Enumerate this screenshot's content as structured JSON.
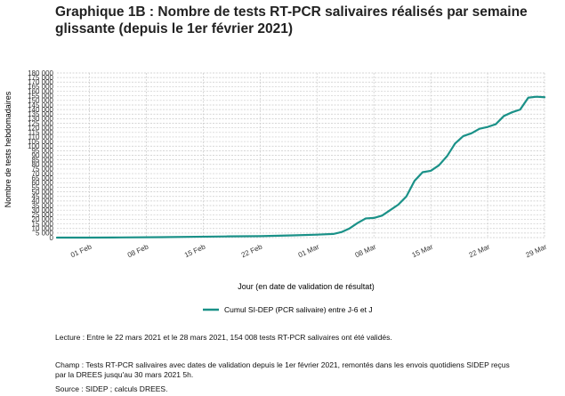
{
  "title": "Graphique 1B : Nombre de tests RT-PCR salivaires réalisés par semaine glissante (depuis le 1er février 2021)",
  "notes": {
    "lecture": "Lecture : Entre le 22 mars 2021 et le 28 mars 2021, 154 008 tests RT-PCR salivaires ont été validés.",
    "champ": "Champ : Tests RT-PCR salivaires avec dates de validation depuis le 1er février 2021, remontés dans les envois quotidiens SIDEP reçus par la DREES jusqu'au 30 mars 2021 5h.",
    "source": "Source : SIDEP ; calculs DREES."
  },
  "colors": {
    "series": "#1a9188",
    "grid": "#c9c9c9"
  },
  "chart_data": {
    "type": "line",
    "title": "Graphique 1B : Nombre de tests RT-PCR salivaires réalisés par semaine glissante (depuis le 1er février 2021)",
    "xlabel": "Jour (en date de validation de résultat)",
    "ylabel": "Nombre de tests hebdomadaires",
    "xlim": [
      "2021-01-28",
      "2021-03-29"
    ],
    "ylim": [
      0,
      180000
    ],
    "grid": true,
    "legend_position": "bottom",
    "x_ticks": [
      {
        "date": "2021-02-01",
        "label": "01 Feb"
      },
      {
        "date": "2021-02-08",
        "label": "08 Feb"
      },
      {
        "date": "2021-02-15",
        "label": "15 Feb"
      },
      {
        "date": "2021-02-22",
        "label": "22 Feb"
      },
      {
        "date": "2021-03-01",
        "label": "01 Mar"
      },
      {
        "date": "2021-03-08",
        "label": "08 Mar"
      },
      {
        "date": "2021-03-15",
        "label": "15 Mar"
      },
      {
        "date": "2021-03-22",
        "label": "22 Mar"
      },
      {
        "date": "2021-03-29",
        "label": "29 Mar"
      }
    ],
    "y_ticks": [
      {
        "value": 0,
        "label": "0"
      },
      {
        "value": 5000,
        "label": "5 000"
      },
      {
        "value": 10000,
        "label": "10 000"
      },
      {
        "value": 15000,
        "label": "15 000"
      },
      {
        "value": 20000,
        "label": "20 000"
      },
      {
        "value": 25000,
        "label": "25 000"
      },
      {
        "value": 30000,
        "label": "30 000"
      },
      {
        "value": 35000,
        "label": "35 000"
      },
      {
        "value": 40000,
        "label": "40 000"
      },
      {
        "value": 45000,
        "label": "45 000"
      },
      {
        "value": 50000,
        "label": "50 000"
      },
      {
        "value": 55000,
        "label": "55 000"
      },
      {
        "value": 60000,
        "label": "60 000"
      },
      {
        "value": 65000,
        "label": "65 000"
      },
      {
        "value": 70000,
        "label": "70 000"
      },
      {
        "value": 75000,
        "label": "75 000"
      },
      {
        "value": 80000,
        "label": "80 000"
      },
      {
        "value": 85000,
        "label": "85 000"
      },
      {
        "value": 90000,
        "label": "90 000"
      },
      {
        "value": 95000,
        "label": "95 000"
      },
      {
        "value": 100000,
        "label": "100 000"
      },
      {
        "value": 105000,
        "label": "105 000"
      },
      {
        "value": 110000,
        "label": "110 000"
      },
      {
        "value": 115000,
        "label": "115 000"
      },
      {
        "value": 120000,
        "label": "120 000"
      },
      {
        "value": 125000,
        "label": "125 000"
      },
      {
        "value": 130000,
        "label": "130 000"
      },
      {
        "value": 135000,
        "label": "135 000"
      },
      {
        "value": 140000,
        "label": "140 000"
      },
      {
        "value": 145000,
        "label": "145 000"
      },
      {
        "value": 150000,
        "label": "150 000"
      },
      {
        "value": 155000,
        "label": "155 000"
      },
      {
        "value": 160000,
        "label": "160 000"
      },
      {
        "value": 165000,
        "label": "165 000"
      },
      {
        "value": 170000,
        "label": "170 000"
      },
      {
        "value": 175000,
        "label": "175 000"
      },
      {
        "value": 180000,
        "label": "180 000"
      }
    ],
    "series": [
      {
        "name": "Cumul SI-DEP (PCR salivaire) entre J-6 et J",
        "color": "#1a9188",
        "points": [
          {
            "x": "2021-01-28",
            "y": 0
          },
          {
            "x": "2021-02-01",
            "y": 0
          },
          {
            "x": "2021-02-05",
            "y": 200
          },
          {
            "x": "2021-02-10",
            "y": 500
          },
          {
            "x": "2021-02-14",
            "y": 900
          },
          {
            "x": "2021-02-18",
            "y": 1300
          },
          {
            "x": "2021-02-22",
            "y": 1600
          },
          {
            "x": "2021-02-26",
            "y": 2400
          },
          {
            "x": "2021-03-01",
            "y": 3200
          },
          {
            "x": "2021-03-03",
            "y": 4000
          },
          {
            "x": "2021-03-04",
            "y": 6000
          },
          {
            "x": "2021-03-05",
            "y": 10000
          },
          {
            "x": "2021-03-06",
            "y": 16000
          },
          {
            "x": "2021-03-07",
            "y": 21000
          },
          {
            "x": "2021-03-08",
            "y": 21500
          },
          {
            "x": "2021-03-09",
            "y": 24000
          },
          {
            "x": "2021-03-10",
            "y": 30000
          },
          {
            "x": "2021-03-11",
            "y": 36000
          },
          {
            "x": "2021-03-12",
            "y": 45000
          },
          {
            "x": "2021-03-13",
            "y": 62000
          },
          {
            "x": "2021-03-14",
            "y": 71500
          },
          {
            "x": "2021-03-15",
            "y": 73000
          },
          {
            "x": "2021-03-16",
            "y": 79000
          },
          {
            "x": "2021-03-17",
            "y": 89000
          },
          {
            "x": "2021-03-18",
            "y": 103000
          },
          {
            "x": "2021-03-19",
            "y": 111000
          },
          {
            "x": "2021-03-20",
            "y": 114000
          },
          {
            "x": "2021-03-21",
            "y": 119000
          },
          {
            "x": "2021-03-22",
            "y": 121000
          },
          {
            "x": "2021-03-23",
            "y": 124000
          },
          {
            "x": "2021-03-24",
            "y": 133000
          },
          {
            "x": "2021-03-25",
            "y": 137000
          },
          {
            "x": "2021-03-26",
            "y": 140000
          },
          {
            "x": "2021-03-27",
            "y": 153000
          },
          {
            "x": "2021-03-28",
            "y": 154008
          },
          {
            "x": "2021-03-29",
            "y": 153500
          }
        ]
      }
    ]
  }
}
